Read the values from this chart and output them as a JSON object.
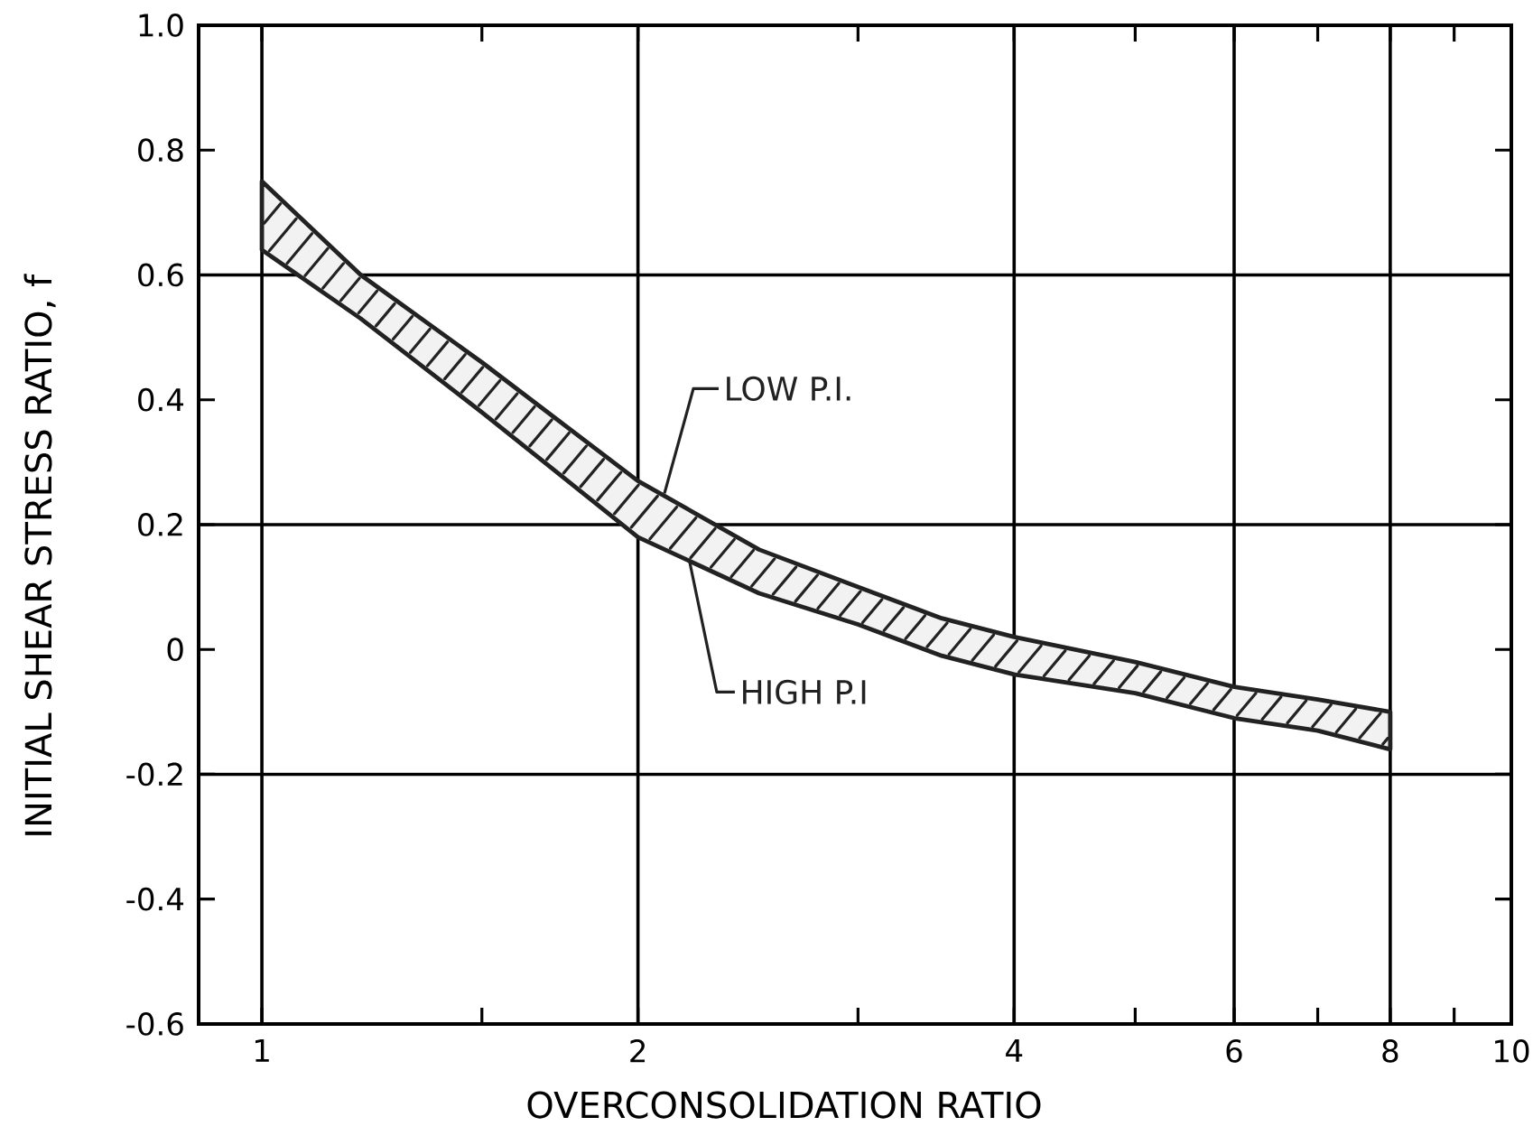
{
  "chart_data": {
    "type": "line",
    "xlabel": "OVERCONSOLIDATION RATIO",
    "ylabel": "INITIAL SHEAR STRESS RATIO, f",
    "x": [
      1,
      1.2,
      1.5,
      2,
      2.5,
      3,
      3.5,
      4,
      5,
      6,
      7,
      8
    ],
    "series": [
      {
        "color": "#222222",
        "values": [
          null,
          null,
          null,
          null,
          null,
          null,
          null,
          null,
          null,
          null,
          null,
          null
        ],
        "lower": [
          0.64,
          0.53,
          0.38,
          0.18,
          0.09,
          0.04,
          -0.01,
          -0.04,
          -0.07,
          -0.11,
          -0.13,
          -0.16
        ],
        "upper": [
          0.75,
          0.6,
          0.46,
          0.27,
          0.16,
          0.1,
          0.05,
          0.02,
          -0.02,
          -0.06,
          -0.08,
          -0.1
        ]
      }
    ],
    "annotations": [
      {
        "text": "LOW P.I.",
        "x": 2.1,
        "y": 0.25
      },
      {
        "text": "HIGH P.I",
        "x": 2.2,
        "y": 0.14
      }
    ],
    "log": "x",
    "xlim": [
      0.89,
      10
    ],
    "xticks": [
      1,
      {
        "value": 1.5,
        "label": null
      },
      2,
      {
        "value": 3,
        "label": null
      },
      4,
      {
        "value": 5,
        "label": null
      },
      6,
      {
        "value": 7,
        "label": null
      },
      8,
      {
        "value": 9,
        "label": null
      },
      10
    ],
    "ylim": [
      -0.6,
      1
    ],
    "yticks": [
      -0.6,
      -0.4,
      -0.2,
      0,
      0.2,
      0.4,
      0.6,
      0.8,
      {
        "value": 1,
        "label": "1.0"
      }
    ],
    "grid": "x",
    "legend": false,
    "ref_lines": [
      {
        "axis": "y",
        "value": 0.6
      },
      {
        "axis": "y",
        "value": 0.2
      },
      {
        "axis": "y",
        "value": -0.2
      }
    ]
  }
}
